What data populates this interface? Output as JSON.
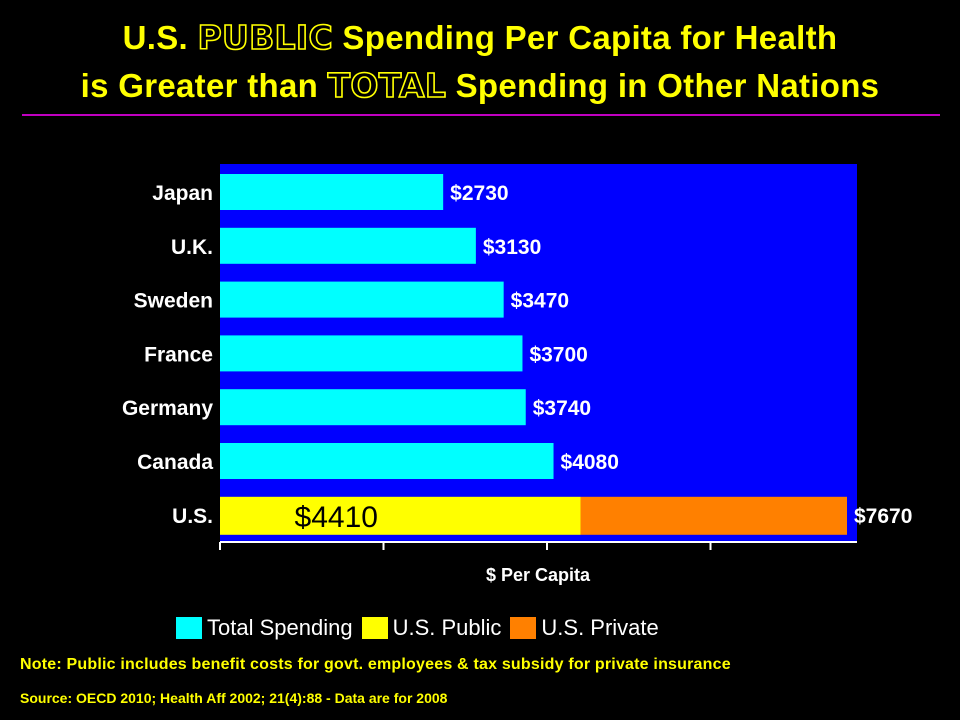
{
  "title": {
    "line1_pre": "U.S. ",
    "line1_outline": "PUBLIC",
    "line1_post": " Spending Per Capita for Health",
    "line2_pre": "is Greater than ",
    "line2_outline": "TOTAL",
    "line2_post": " Spending in Other Nations"
  },
  "colors": {
    "background": "#000000",
    "plot_background": "#0000ff",
    "total_spending": "#00ffff",
    "us_public": "#ffff00",
    "us_private": "#ff8000",
    "title": "#ffff00",
    "rule": "#c000c0"
  },
  "chart_data": {
    "type": "bar",
    "orientation": "horizontal",
    "stacked": true,
    "categories": [
      "Japan",
      "U.K.",
      "Sweden",
      "France",
      "Germany",
      "Canada",
      "U.S."
    ],
    "series": [
      {
        "name": "Total Spending",
        "values": [
          2730,
          3130,
          3470,
          3700,
          3740,
          4080,
          null
        ]
      },
      {
        "name": "U.S. Public",
        "values": [
          null,
          null,
          null,
          null,
          null,
          null,
          4410
        ]
      },
      {
        "name": "U.S. Private",
        "values": [
          null,
          null,
          null,
          null,
          null,
          null,
          3260
        ]
      }
    ],
    "data_labels": [
      "$2730",
      "$3130",
      "$3470",
      "$3700",
      "$3740",
      "$4080",
      "$7670"
    ],
    "us_public_label": "$4410",
    "xlabel": "$ Per Capita",
    "ylabel": "",
    "xlim": [
      0,
      7800
    ],
    "grid": false,
    "legend_position": "bottom"
  },
  "legend": [
    {
      "label": "Total Spending",
      "color": "#00ffff"
    },
    {
      "label": "U.S. Public",
      "color": "#ffff00"
    },
    {
      "label": "U.S. Private",
      "color": "#ff8000"
    }
  ],
  "note": "Note: Public includes benefit costs for govt. employees & tax subsidy for private insurance",
  "source": "Source: OECD 2010; Health Aff 2002; 21(4):88 - Data are for 2008"
}
